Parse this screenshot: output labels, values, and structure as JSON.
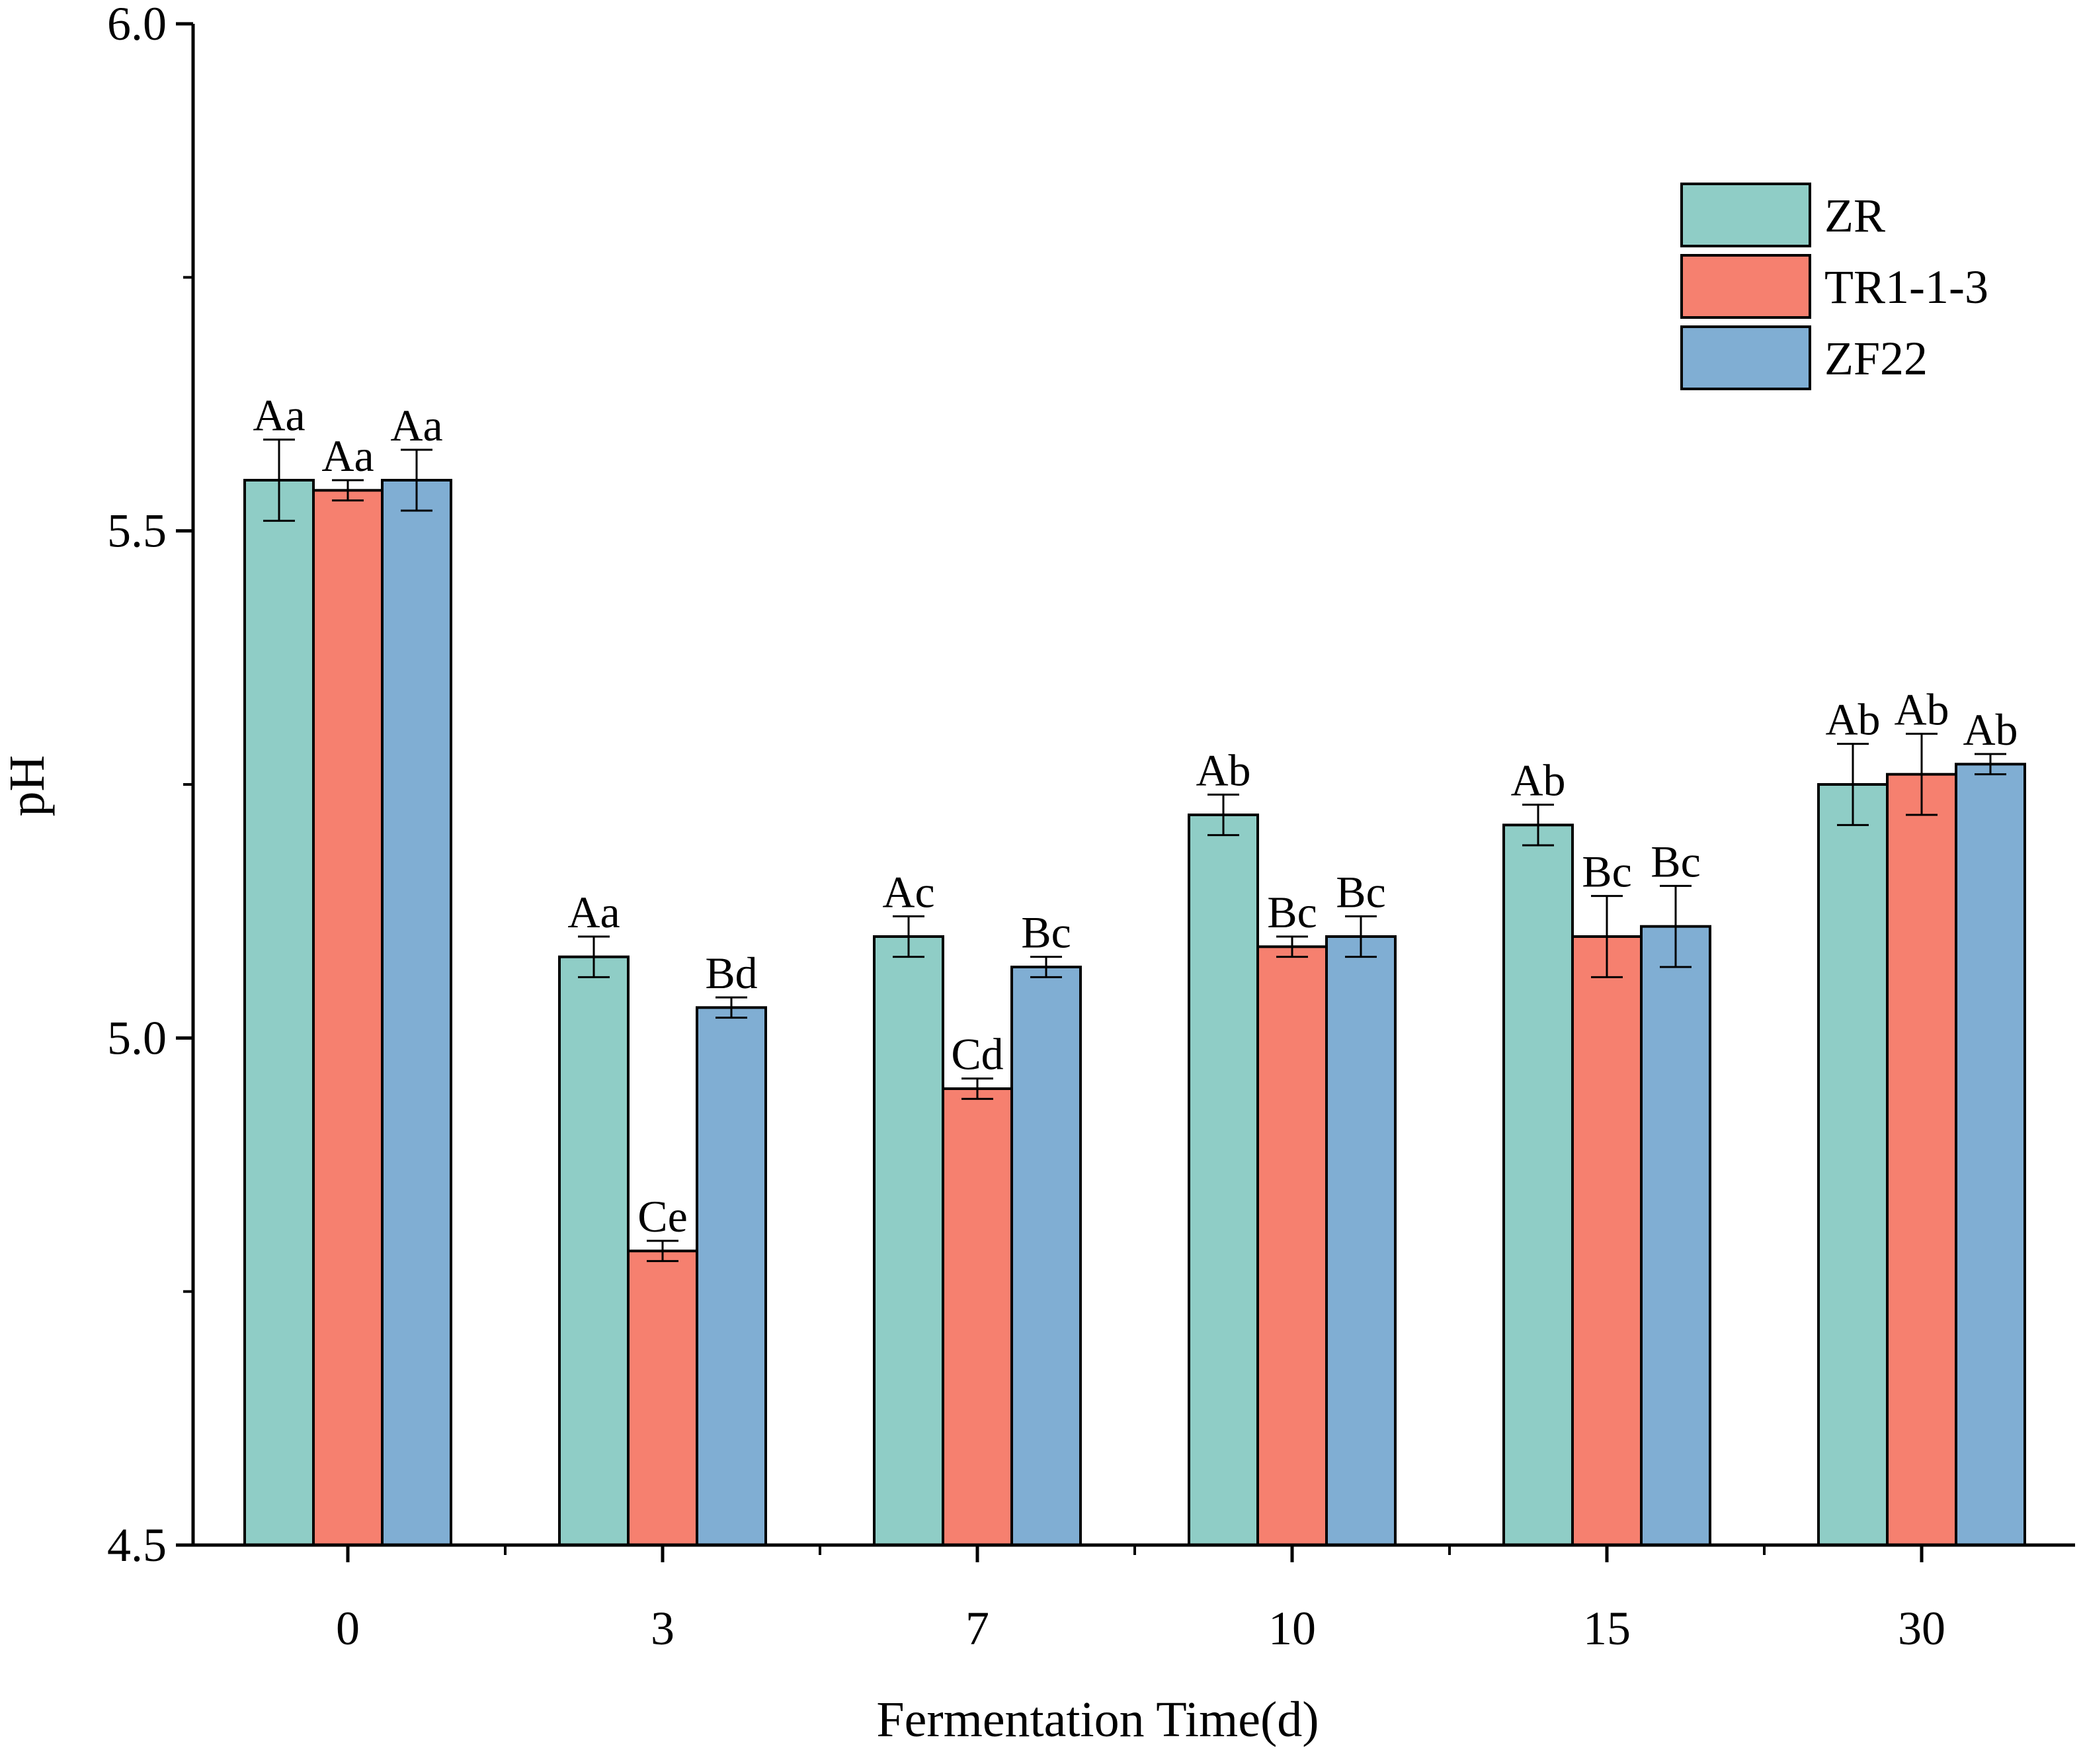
{
  "chart_data": {
    "type": "bar",
    "xlabel": "Fermentation Time(d)",
    "ylabel": "pH",
    "ylim": [
      4.5,
      6.0
    ],
    "yticks": [
      4.5,
      5.0,
      5.5,
      6.0
    ],
    "ytick_labels": [
      "4.5",
      "5.0",
      "5.5",
      "6.0"
    ],
    "minor_yticks": [
      4.75,
      5.25,
      5.75
    ],
    "categories": [
      "0",
      "3",
      "7",
      "10",
      "15",
      "30"
    ],
    "legend_position": "top-right",
    "series": [
      {
        "name": "ZR",
        "color": "#8fcdc6",
        "values": [
          5.55,
          5.08,
          5.1,
          5.22,
          5.21,
          5.25
        ],
        "errors": [
          0.04,
          0.02,
          0.02,
          0.02,
          0.02,
          0.04
        ],
        "labels": [
          "Aa",
          "Aa",
          "Ac",
          "Ab",
          "Ab",
          "Ab"
        ]
      },
      {
        "name": "TR1-1-3",
        "color": "#f6806f",
        "values": [
          5.54,
          4.79,
          4.95,
          5.09,
          5.1,
          5.26
        ],
        "errors": [
          0.01,
          0.01,
          0.01,
          0.01,
          0.04,
          0.04
        ],
        "labels": [
          "Aa",
          "Ce",
          "Cd",
          "Bc",
          "Bc",
          "Ab"
        ]
      },
      {
        "name": "ZF22",
        "color": "#80aed3",
        "values": [
          5.55,
          5.03,
          5.07,
          5.1,
          5.11,
          5.27
        ],
        "errors": [
          0.03,
          0.01,
          0.01,
          0.02,
          0.04,
          0.01
        ],
        "labels": [
          "Aa",
          "Bd",
          "Bc",
          "Bc",
          "Bc",
          "Ab"
        ]
      }
    ]
  }
}
